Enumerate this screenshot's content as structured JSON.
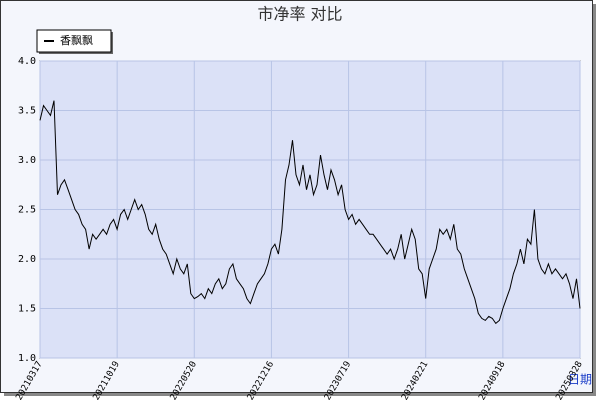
{
  "chart_data": {
    "type": "line",
    "title": "市净率 对比",
    "x_label": "日期",
    "categories": [
      "20210317",
      null,
      null,
      null,
      null,
      null,
      null,
      null,
      null,
      null,
      null,
      null,
      null,
      null,
      null,
      null,
      null,
      null,
      null,
      null,
      null,
      null,
      "20211019",
      null,
      null,
      null,
      null,
      null,
      null,
      null,
      null,
      null,
      null,
      null,
      null,
      null,
      null,
      null,
      null,
      null,
      null,
      null,
      null,
      null,
      "20220520",
      null,
      null,
      null,
      null,
      null,
      null,
      null,
      null,
      null,
      null,
      null,
      null,
      null,
      null,
      null,
      null,
      null,
      null,
      null,
      null,
      null,
      "20221216",
      null,
      null,
      null,
      null,
      null,
      null,
      null,
      null,
      null,
      null,
      null,
      null,
      null,
      null,
      null,
      null,
      null,
      null,
      null,
      null,
      null,
      "20230719",
      null,
      null,
      null,
      null,
      null,
      null,
      null,
      null,
      null,
      null,
      null,
      null,
      null,
      null,
      null,
      null,
      null,
      null,
      null,
      null,
      null,
      "20240221",
      null,
      null,
      null,
      null,
      null,
      null,
      null,
      null,
      null,
      null,
      null,
      null,
      null,
      null,
      null,
      null,
      null,
      null,
      null,
      null,
      null,
      "20240918",
      null,
      null,
      null,
      null,
      null,
      null,
      null,
      null,
      null,
      null,
      null,
      null,
      null,
      null,
      null,
      null,
      null,
      null,
      null,
      null,
      null,
      "20250328"
    ],
    "series": [
      {
        "name": "香飘飘",
        "color": "#000000",
        "values": [
          3.4,
          3.55,
          3.5,
          3.45,
          3.6,
          2.65,
          2.75,
          2.8,
          2.7,
          2.6,
          2.5,
          2.45,
          2.35,
          2.3,
          2.1,
          2.25,
          2.2,
          2.25,
          2.3,
          2.25,
          2.35,
          2.4,
          2.3,
          2.45,
          2.5,
          2.4,
          2.5,
          2.6,
          2.5,
          2.55,
          2.45,
          2.3,
          2.25,
          2.35,
          2.2,
          2.1,
          2.05,
          1.95,
          1.85,
          2.0,
          1.9,
          1.85,
          1.95,
          1.65,
          1.6,
          1.62,
          1.65,
          1.6,
          1.7,
          1.65,
          1.75,
          1.8,
          1.7,
          1.75,
          1.9,
          1.95,
          1.8,
          1.75,
          1.7,
          1.6,
          1.55,
          1.65,
          1.75,
          1.8,
          1.85,
          1.95,
          2.1,
          2.15,
          2.05,
          2.3,
          2.8,
          2.95,
          3.2,
          2.85,
          2.75,
          2.95,
          2.7,
          2.85,
          2.65,
          2.75,
          3.05,
          2.85,
          2.7,
          2.9,
          2.8,
          2.65,
          2.75,
          2.5,
          2.4,
          2.45,
          2.35,
          2.4,
          2.35,
          2.3,
          2.25,
          2.25,
          2.2,
          2.15,
          2.1,
          2.05,
          2.1,
          2.0,
          2.1,
          2.25,
          2.0,
          2.15,
          2.3,
          2.2,
          1.9,
          1.85,
          1.6,
          1.9,
          2.0,
          2.1,
          2.3,
          2.25,
          2.3,
          2.2,
          2.35,
          2.1,
          2.05,
          1.9,
          1.8,
          1.7,
          1.6,
          1.45,
          1.4,
          1.38,
          1.42,
          1.4,
          1.35,
          1.38,
          1.5,
          1.6,
          1.7,
          1.85,
          1.95,
          2.1,
          1.95,
          2.2,
          2.15,
          2.5,
          2.0,
          1.9,
          1.85,
          1.95,
          1.85,
          1.9,
          1.85,
          1.8,
          1.85,
          1.75,
          1.6,
          1.8,
          1.5
        ]
      }
    ],
    "ylim": [
      1,
      4
    ],
    "yticks": [
      {
        "value": 1,
        "label": "1.0"
      },
      {
        "value": 1.5,
        "label": "1.5"
      },
      {
        "value": 2,
        "label": "2.0"
      },
      {
        "value": 2.5,
        "label": "2.5"
      },
      {
        "value": 3,
        "label": "3.0"
      },
      {
        "value": 3.5,
        "label": "3.5"
      },
      {
        "value": 4,
        "label": "4.0"
      }
    ],
    "grid": true
  }
}
